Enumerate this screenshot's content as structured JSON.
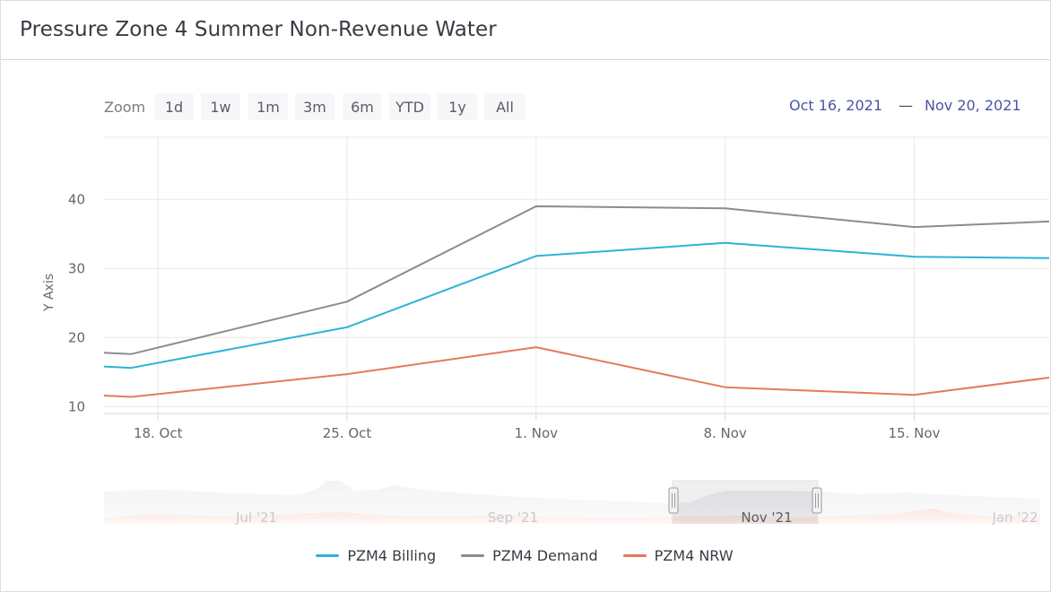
{
  "panel": {
    "title": "Pressure Zone 4 Summer Non-Revenue Water"
  },
  "range_selector": {
    "zoom_label": "Zoom",
    "buttons": [
      "1d",
      "1w",
      "1m",
      "3m",
      "6m",
      "YTD",
      "1y",
      "All"
    ],
    "from": "Oct 16, 2021",
    "separator": "—",
    "to": "Nov 20, 2021"
  },
  "navigator": {
    "labels": [
      "Jul '21",
      "Sep '21",
      "Nov '21",
      "Jan '22"
    ]
  },
  "chart_data": {
    "type": "line",
    "title": "",
    "xlabel": "",
    "ylabel": "Y Axis",
    "x_tick_labels": [
      "18. Oct",
      "25. Oct",
      "1. Nov",
      "8. Nov",
      "15. Nov"
    ],
    "y_tick_labels": [
      "10",
      "20",
      "30",
      "40"
    ],
    "xlim": [
      "2021-10-16",
      "2021-11-20"
    ],
    "ylim": [
      9,
      49
    ],
    "grid": true,
    "legend": "bottom-center",
    "x": [
      "2021-10-16",
      "2021-10-17",
      "2021-10-25",
      "2021-11-01",
      "2021-11-08",
      "2021-11-15",
      "2021-11-20"
    ],
    "series": [
      {
        "name": "PZM4 Billing",
        "color": "#2bb3d8",
        "values": [
          15.8,
          15.6,
          21.5,
          31.8,
          33.7,
          31.7,
          31.5
        ]
      },
      {
        "name": "PZM4 Demand",
        "color": "#8b8b92",
        "values": [
          17.8,
          17.6,
          25.2,
          39.0,
          38.7,
          36.0,
          36.8
        ]
      },
      {
        "name": "PZM4 NRW",
        "color": "#e57a5b",
        "values": [
          11.6,
          11.4,
          14.7,
          18.6,
          12.8,
          11.7,
          14.2
        ]
      }
    ]
  }
}
